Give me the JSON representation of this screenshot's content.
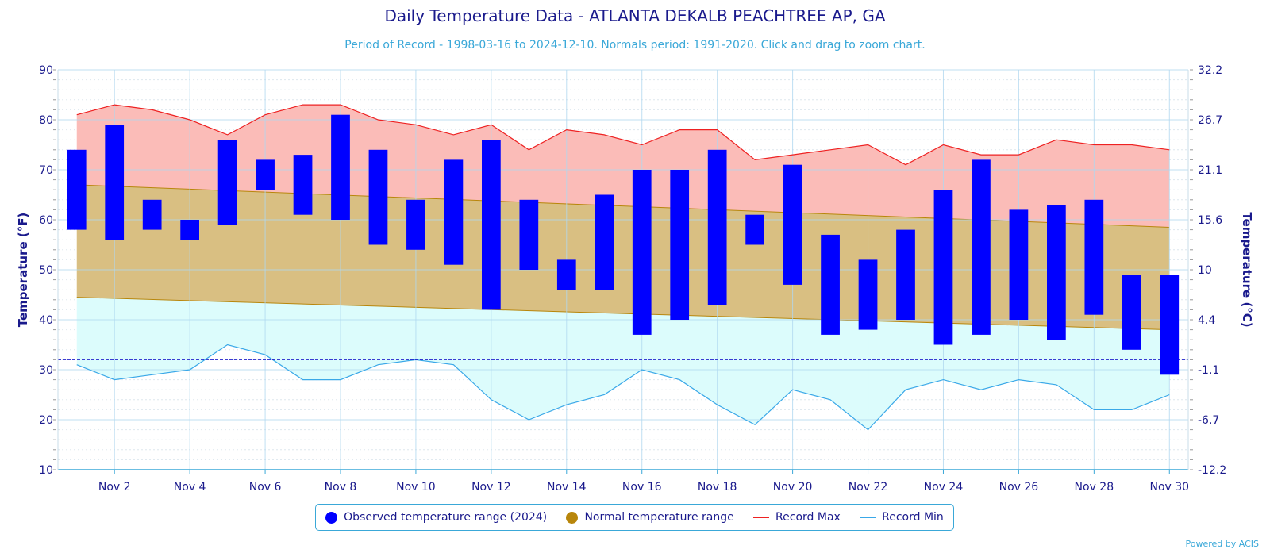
{
  "page": {
    "title": "Daily Temperature Data - ATLANTA DEKALB PEACHTREE AP, GA",
    "subtitle": "Period of Record - 1998-03-16 to 2024-12-10. Normals period: 1991-2020. Click and drag to zoom chart.",
    "powered_by": "Powered by ACIS"
  },
  "legend": {
    "observed": "Observed temperature range (2024)",
    "normal": "Normal temperature range",
    "record_max": "Record Max",
    "record_min": "Record Min"
  },
  "colors": {
    "observed": "#0000ff",
    "normal_fill": "#d9bf82",
    "normal_edge": "#b8860b",
    "record_max_line": "#ee2222",
    "record_max_fill": "#fbbcb8",
    "record_min_line": "#3aa8e8",
    "record_min_fill": "#dcfcfc",
    "axis_text": "#1a1a8c",
    "grid": "#b0d8f0",
    "freezing_line": "#2222cc"
  },
  "chart_data": {
    "type": "bar",
    "title": "Daily Temperature Data - ATLANTA DEKALB PEACHTREE AP, GA",
    "ylabel": "Temperature (°F)",
    "ylabel_right": "Temperature (°C)",
    "ylim": [
      10,
      90
    ],
    "yticks_left": [
      "90",
      "80",
      "70",
      "60",
      "50",
      "40",
      "30",
      "20",
      "10"
    ],
    "yticks_right": [
      "32.2",
      "26.7",
      "21.1",
      "15.6",
      "10",
      "4.4",
      "-1.1",
      "-6.7",
      "-12.2"
    ],
    "x_days": [
      1,
      2,
      3,
      4,
      5,
      6,
      7,
      8,
      9,
      10,
      11,
      12,
      13,
      14,
      15,
      16,
      17,
      18,
      19,
      20,
      21,
      22,
      23,
      24,
      25,
      26,
      27,
      28,
      29,
      30
    ],
    "x_tick_labels": [
      "Nov 2",
      "Nov 4",
      "Nov 6",
      "Nov 8",
      "Nov 10",
      "Nov 12",
      "Nov 14",
      "Nov 16",
      "Nov 18",
      "Nov 20",
      "Nov 22",
      "Nov 24",
      "Nov 26",
      "Nov 28",
      "Nov 30"
    ],
    "grid": true,
    "legend_position": "bottom",
    "freezing_reference": 32,
    "series": [
      {
        "name": "Observed temperature range (2024)",
        "type": "range-bar",
        "low": [
          58,
          56,
          58,
          56,
          59,
          66,
          61,
          60,
          55,
          54,
          51,
          42,
          50,
          46,
          46,
          37,
          40,
          43,
          55,
          47,
          37,
          38,
          40,
          35,
          37,
          40,
          36,
          41,
          34,
          29
        ],
        "high": [
          74,
          79,
          64,
          60,
          76,
          72,
          73,
          81,
          74,
          64,
          72,
          76,
          64,
          52,
          65,
          70,
          70,
          74,
          61,
          71,
          57,
          52,
          58,
          66,
          72,
          62,
          63,
          64,
          49,
          49
        ]
      },
      {
        "name": "Normal temperature range",
        "type": "range-area",
        "low_start": 44.5,
        "low_end": 38,
        "high_start": 67,
        "high_end": 58.5
      },
      {
        "name": "Record Max",
        "type": "line",
        "values": [
          81,
          83,
          82,
          80,
          77,
          81,
          83,
          83,
          80,
          79,
          77,
          79,
          74,
          78,
          77,
          75,
          78,
          78,
          72,
          73,
          74,
          75,
          71,
          75,
          73,
          73,
          76,
          75,
          75,
          74
        ]
      },
      {
        "name": "Record Min",
        "type": "line",
        "values": [
          31,
          28,
          29,
          30,
          35,
          33,
          28,
          28,
          31,
          32,
          31,
          24,
          20,
          23,
          25,
          30,
          28,
          23,
          19,
          26,
          24,
          18,
          26,
          28,
          26,
          28,
          27,
          22,
          22,
          25
        ]
      }
    ]
  }
}
